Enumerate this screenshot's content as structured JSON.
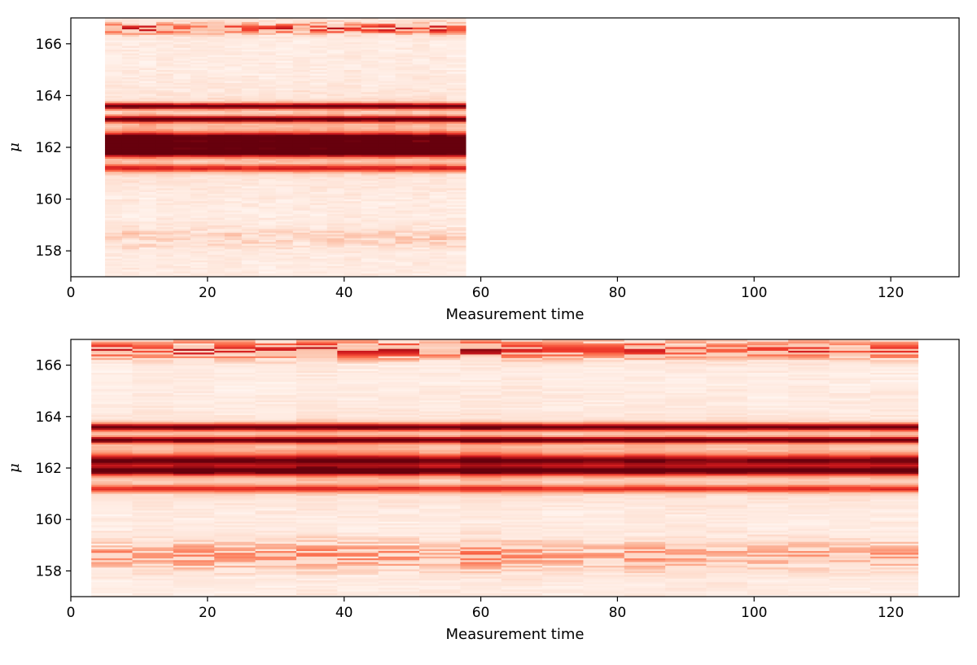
{
  "chart_data": [
    {
      "type": "heatmap",
      "colormap": "Reds",
      "xlabel": "Measurement time",
      "ylabel": "μ",
      "xlim": [
        0,
        130
      ],
      "ylim": [
        157,
        167
      ],
      "xticks": [
        0,
        20,
        40,
        60,
        80,
        100,
        120
      ],
      "yticks": [
        158,
        160,
        162,
        164,
        166
      ],
      "grid": false,
      "columns": [
        {
          "x0": 5.0,
          "x1": 7.5
        },
        {
          "x0": 7.5,
          "x1": 10.0
        },
        {
          "x0": 10.0,
          "x1": 12.5
        },
        {
          "x0": 12.5,
          "x1": 15.0
        },
        {
          "x0": 15.0,
          "x1": 17.5
        },
        {
          "x0": 17.5,
          "x1": 20.0
        },
        {
          "x0": 20.0,
          "x1": 22.5
        },
        {
          "x0": 22.5,
          "x1": 25.0
        },
        {
          "x0": 25.0,
          "x1": 27.5
        },
        {
          "x0": 27.5,
          "x1": 30.0
        },
        {
          "x0": 30.0,
          "x1": 32.5
        },
        {
          "x0": 32.5,
          "x1": 35.0
        },
        {
          "x0": 35.0,
          "x1": 37.5
        },
        {
          "x0": 37.5,
          "x1": 40.0
        },
        {
          "x0": 40.0,
          "x1": 42.5
        },
        {
          "x0": 42.5,
          "x1": 45.0
        },
        {
          "x0": 45.0,
          "x1": 47.5
        },
        {
          "x0": 47.5,
          "x1": 50.0
        },
        {
          "x0": 50.0,
          "x1": 52.5
        },
        {
          "x0": 52.5,
          "x1": 55.0
        },
        {
          "x0": 55.0,
          "x1": 57.8
        }
      ],
      "bands": [
        {
          "y": 163.6,
          "width": 0.08,
          "intensity": 0.95
        },
        {
          "y": 163.1,
          "width": 0.08,
          "intensity": 0.95
        },
        {
          "y": 162.4,
          "width": 0.12,
          "intensity": 0.85
        },
        {
          "y": 162.1,
          "width": 0.12,
          "intensity": 0.8
        },
        {
          "y": 161.8,
          "width": 0.12,
          "intensity": 0.9
        },
        {
          "y": 161.2,
          "width": 0.1,
          "intensity": 0.6
        },
        {
          "y": 166.6,
          "width": 0.15,
          "intensity": 0.65
        },
        {
          "y": 158.5,
          "width": 0.3,
          "intensity": 0.15
        }
      ],
      "background_intensity": 0.05
    },
    {
      "type": "heatmap",
      "colormap": "Reds",
      "xlabel": "Measurement time",
      "ylabel": "μ",
      "xlim": [
        0,
        130
      ],
      "ylim": [
        157,
        167
      ],
      "xticks": [
        0,
        20,
        40,
        60,
        80,
        100,
        120
      ],
      "yticks": [
        158,
        160,
        162,
        164,
        166
      ],
      "grid": false,
      "columns": [
        {
          "x0": 3.0,
          "x1": 9.0
        },
        {
          "x0": 9.0,
          "x1": 15.0
        },
        {
          "x0": 15.0,
          "x1": 21.0
        },
        {
          "x0": 21.0,
          "x1": 27.0
        },
        {
          "x0": 27.0,
          "x1": 33.0
        },
        {
          "x0": 33.0,
          "x1": 39.0
        },
        {
          "x0": 39.0,
          "x1": 45.0
        },
        {
          "x0": 45.0,
          "x1": 51.0
        },
        {
          "x0": 51.0,
          "x1": 57.0
        },
        {
          "x0": 57.0,
          "x1": 63.0
        },
        {
          "x0": 63.0,
          "x1": 69.0
        },
        {
          "x0": 69.0,
          "x1": 75.0
        },
        {
          "x0": 75.0,
          "x1": 81.0
        },
        {
          "x0": 81.0,
          "x1": 87.0
        },
        {
          "x0": 87.0,
          "x1": 93.0
        },
        {
          "x0": 93.0,
          "x1": 99.0
        },
        {
          "x0": 99.0,
          "x1": 105.0
        },
        {
          "x0": 105.0,
          "x1": 111.0
        },
        {
          "x0": 111.0,
          "x1": 117.0
        },
        {
          "x0": 117.0,
          "x1": 124.0
        }
      ],
      "bands": [
        {
          "y": 163.6,
          "width": 0.1,
          "intensity": 0.9
        },
        {
          "y": 163.1,
          "width": 0.08,
          "intensity": 0.95
        },
        {
          "y": 162.3,
          "width": 0.15,
          "intensity": 0.75
        },
        {
          "y": 161.9,
          "width": 0.12,
          "intensity": 0.9
        },
        {
          "y": 161.2,
          "width": 0.1,
          "intensity": 0.55
        },
        {
          "y": 166.6,
          "width": 0.25,
          "intensity": 0.65
        },
        {
          "y": 158.6,
          "width": 0.4,
          "intensity": 0.35
        }
      ],
      "background_intensity": 0.05
    }
  ]
}
